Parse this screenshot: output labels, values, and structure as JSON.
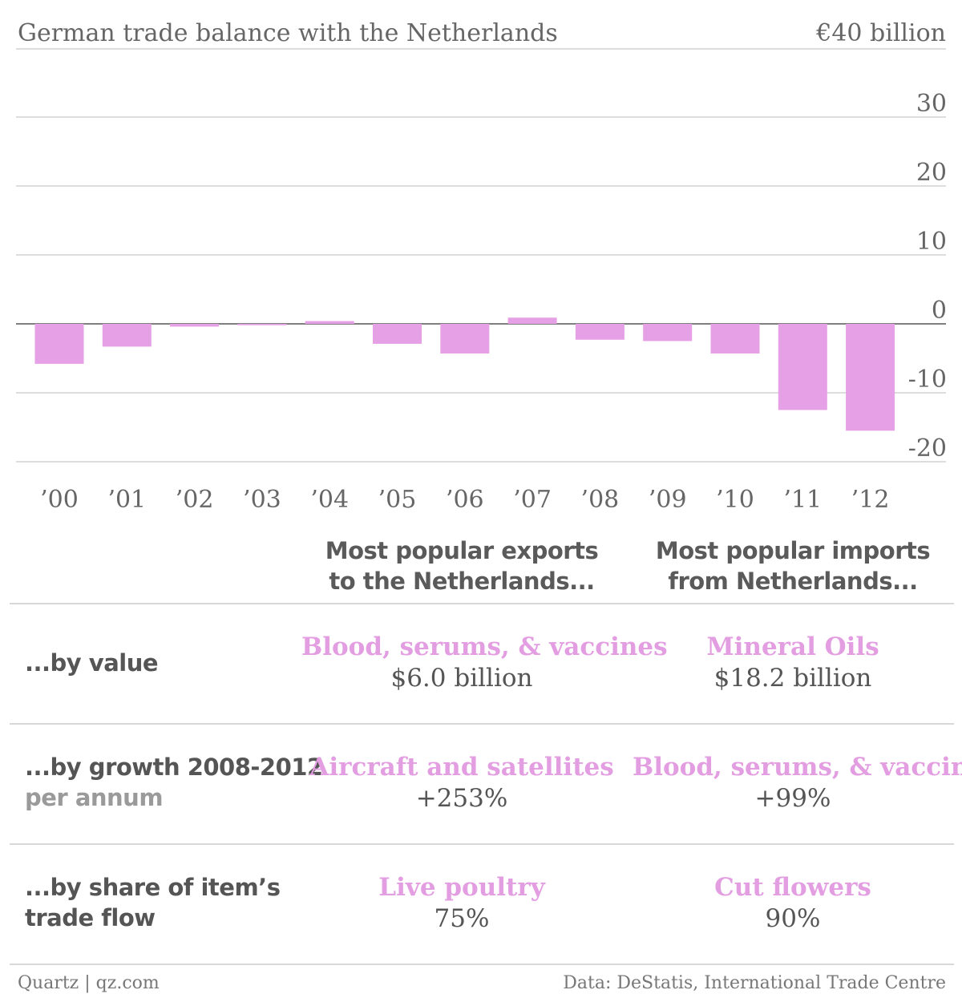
{
  "chart_data": {
    "type": "bar",
    "title": "German trade balance with the Netherlands",
    "unit_label": "€40 billion",
    "categories": [
      "’00",
      "’01",
      "’02",
      "’03",
      "’04",
      "’05",
      "’06",
      "’07",
      "’08",
      "’09",
      "’10",
      "’11",
      "’12"
    ],
    "values": [
      -5.8,
      -3.3,
      -0.4,
      -0.2,
      0.4,
      -2.9,
      -4.3,
      0.9,
      -2.3,
      -2.5,
      -4.3,
      -12.5,
      -15.5
    ],
    "yticks": [
      30,
      20,
      10,
      0,
      -10,
      -20
    ],
    "ylim": [
      -20,
      40
    ],
    "grid": true,
    "bar_color": "#e6a0e5"
  },
  "table": {
    "col_headers": [
      {
        "line1": "Most popular exports",
        "line2": "to the Netherlands..."
      },
      {
        "line1": "Most popular imports",
        "line2": "from Netherlands..."
      }
    ],
    "rows": [
      {
        "label": "...by value",
        "sublabel": "",
        "exports_item": "Blood, serums, & vaccines",
        "exports_value": "$6.0 billion",
        "imports_item": "Mineral Oils",
        "imports_value": "$18.2 billion"
      },
      {
        "label": "...by growth 2008-2012",
        "sublabel": "per annum",
        "exports_item": "Aircraft and satellites",
        "exports_value": "+253%",
        "imports_item": "Blood, serums, & vaccines",
        "imports_value": "+99%"
      },
      {
        "label": "...by share of item’s",
        "label2": "trade flow",
        "exports_item": "Live poultry",
        "exports_value": "75%",
        "imports_item": "Cut flowers",
        "imports_value": "90%"
      }
    ]
  },
  "footer": {
    "left": "Quartz | qz.com",
    "right": "Data: DeStatis, International Trade Centre"
  },
  "colors": {
    "accent": "#e39ee2",
    "text": "#555555",
    "grid": "#dddddd"
  }
}
